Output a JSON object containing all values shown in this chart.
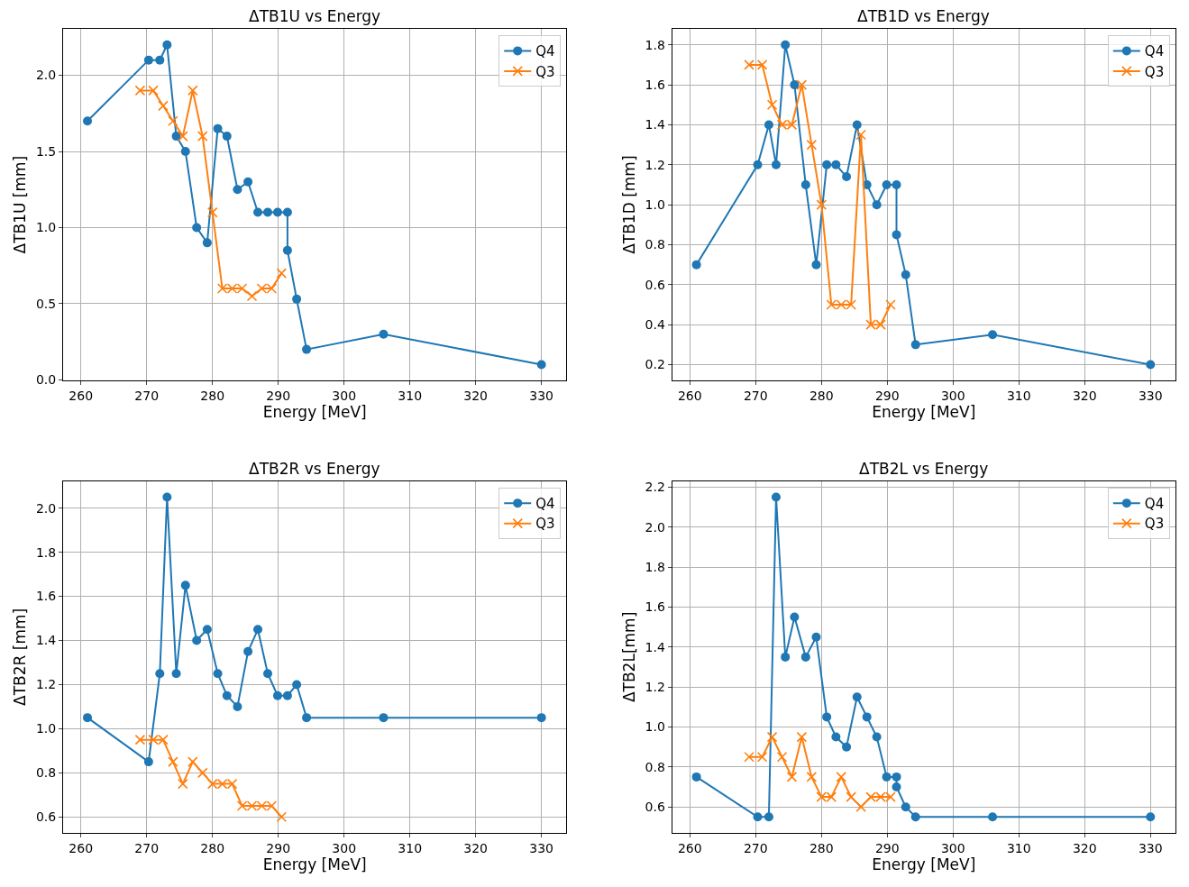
{
  "chart_data": [
    {
      "type": "line",
      "title": "ΔTB1U vs Energy",
      "xlabel": "Energy [MeV]",
      "ylabel": "ΔTB1U [mm]",
      "xlim": [
        257.3,
        333.8
      ],
      "xticks": [
        260,
        270,
        280,
        290,
        300,
        310,
        320,
        330
      ],
      "ylim": [
        -0.005,
        2.305
      ],
      "yticks": [
        {
          "value": 0,
          "label": "0.0"
        },
        0.5,
        {
          "value": 1,
          "label": "1.0"
        },
        1.5,
        {
          "value": 2,
          "label": "2.0"
        }
      ],
      "grid": true,
      "legend": "top right",
      "series": [
        {
          "name": "Q4",
          "color": "#1f77b4",
          "marker": "circle",
          "x": [
            261,
            270.3,
            272,
            273.1,
            274.5,
            275.9,
            277.6,
            279.2,
            280.8,
            282.2,
            283.8,
            285.4,
            286.9,
            288.4,
            289.9,
            291.4,
            291.4,
            292.8,
            294.3,
            306,
            330
          ],
          "values": [
            1.7,
            2.1,
            2.1,
            2.2,
            1.6,
            1.5,
            1.0,
            0.9,
            1.65,
            1.6,
            1.25,
            1.3,
            1.1,
            1.1,
            1.1,
            1.1,
            0.85,
            0.53,
            0.2,
            0.3,
            0.1
          ]
        },
        {
          "name": "Q3",
          "color": "#ff7f0e",
          "marker": "cross",
          "x": [
            269,
            271,
            272.5,
            274,
            275.5,
            277,
            278.5,
            280,
            281.5,
            283,
            284.5,
            286,
            287.5,
            289,
            290.5
          ],
          "values": [
            1.9,
            1.9,
            1.8,
            1.7,
            1.6,
            1.9,
            1.6,
            1.1,
            0.6,
            0.6,
            0.6,
            0.55,
            0.6,
            0.6,
            0.7
          ]
        }
      ]
    },
    {
      "type": "line",
      "title": "ΔTB1D vs Energy",
      "xlabel": "Energy [MeV]",
      "ylabel": "ΔTB1D [mm]",
      "xlim": [
        257.3,
        333.8
      ],
      "xticks": [
        260,
        270,
        280,
        290,
        300,
        310,
        320,
        330
      ],
      "ylim": [
        0.12,
        1.88
      ],
      "yticks": [
        0.2,
        0.4,
        0.6,
        0.8,
        {
          "value": 1,
          "label": "1.0"
        },
        1.2,
        1.4,
        1.6,
        1.8
      ],
      "grid": true,
      "legend": "top right",
      "series": [
        {
          "name": "Q4",
          "color": "#1f77b4",
          "marker": "circle",
          "x": [
            261,
            270.3,
            272,
            273.1,
            274.5,
            275.9,
            277.6,
            279.2,
            280.8,
            282.2,
            283.8,
            285.4,
            286.9,
            288.4,
            289.9,
            291.4,
            291.4,
            292.8,
            294.3,
            306,
            330
          ],
          "values": [
            0.7,
            1.2,
            1.4,
            1.2,
            1.8,
            1.6,
            1.1,
            0.7,
            1.2,
            1.2,
            1.14,
            1.4,
            1.1,
            1.0,
            1.1,
            1.1,
            0.85,
            0.65,
            0.3,
            0.35,
            0.2
          ]
        },
        {
          "name": "Q3",
          "color": "#ff7f0e",
          "marker": "cross",
          "x": [
            269,
            271,
            272.5,
            274,
            275.5,
            277,
            278.5,
            280,
            281.5,
            283,
            284.5,
            286,
            287.5,
            289,
            290.5
          ],
          "values": [
            1.7,
            1.7,
            1.5,
            1.4,
            1.4,
            1.6,
            1.3,
            1.0,
            0.5,
            0.5,
            0.5,
            1.35,
            0.4,
            0.4,
            0.5
          ]
        }
      ]
    },
    {
      "type": "line",
      "title": "ΔTB2R vs Energy",
      "xlabel": "Energy [MeV]",
      "ylabel": "ΔTB2R [mm]",
      "xlim": [
        257.3,
        333.8
      ],
      "xticks": [
        260,
        270,
        280,
        290,
        300,
        310,
        320,
        330
      ],
      "ylim": [
        0.5275,
        2.1225
      ],
      "yticks": [
        0.6,
        0.8,
        {
          "value": 1,
          "label": "1.0"
        },
        1.2,
        1.4,
        1.6,
        1.8,
        {
          "value": 2,
          "label": "2.0"
        }
      ],
      "grid": true,
      "legend": "top right",
      "series": [
        {
          "name": "Q4",
          "color": "#1f77b4",
          "marker": "circle",
          "x": [
            261,
            270.3,
            272,
            273.1,
            274.5,
            275.9,
            277.6,
            279.2,
            280.8,
            282.2,
            283.8,
            285.4,
            286.9,
            288.4,
            289.9,
            291.4,
            292.8,
            294.3,
            306,
            330
          ],
          "values": [
            1.05,
            0.85,
            1.25,
            2.05,
            1.25,
            1.65,
            1.4,
            1.45,
            1.25,
            1.15,
            1.1,
            1.35,
            1.45,
            1.25,
            1.15,
            1.15,
            1.2,
            1.05,
            1.05,
            1.05
          ]
        },
        {
          "name": "Q3",
          "color": "#ff7f0e",
          "marker": "cross",
          "x": [
            269,
            271,
            272.5,
            274,
            275.5,
            277,
            278.5,
            280,
            281.5,
            283,
            284.5,
            286,
            287.5,
            289,
            290.5
          ],
          "values": [
            0.95,
            0.95,
            0.95,
            0.85,
            0.75,
            0.85,
            0.8,
            0.75,
            0.75,
            0.75,
            0.65,
            0.65,
            0.65,
            0.65,
            0.6
          ]
        }
      ]
    },
    {
      "type": "line",
      "title": "ΔTB2L vs Energy",
      "xlabel": "Energy [MeV]",
      "ylabel": "ΔTB2L[mm]",
      "xlim": [
        257.3,
        333.8
      ],
      "xticks": [
        260,
        270,
        280,
        290,
        300,
        310,
        320,
        330
      ],
      "ylim": [
        0.47,
        2.23
      ],
      "yticks": [
        0.6,
        0.8,
        {
          "value": 1,
          "label": "1.0"
        },
        1.2,
        1.4,
        1.6,
        1.8,
        {
          "value": 2,
          "label": "2.0"
        },
        2.2
      ],
      "grid": true,
      "legend": "top right",
      "series": [
        {
          "name": "Q4",
          "color": "#1f77b4",
          "marker": "circle",
          "x": [
            261,
            270.3,
            272,
            273.1,
            274.5,
            275.9,
            277.6,
            279.2,
            280.8,
            282.2,
            283.8,
            285.4,
            286.9,
            288.4,
            289.9,
            291.4,
            291.4,
            292.8,
            294.3,
            306,
            330
          ],
          "values": [
            0.75,
            0.55,
            0.55,
            2.15,
            1.35,
            1.55,
            1.35,
            1.45,
            1.05,
            0.95,
            0.9,
            1.15,
            1.05,
            0.95,
            0.75,
            0.75,
            0.7,
            0.6,
            0.55,
            0.55,
            0.55
          ]
        },
        {
          "name": "Q3",
          "color": "#ff7f0e",
          "marker": "cross",
          "x": [
            269,
            271,
            272.5,
            274,
            275.5,
            277,
            278.5,
            280,
            281.5,
            283,
            284.5,
            286,
            287.5,
            289,
            290.5
          ],
          "values": [
            0.85,
            0.85,
            0.95,
            0.85,
            0.75,
            0.95,
            0.75,
            0.65,
            0.65,
            0.75,
            0.65,
            0.6,
            0.65,
            0.65,
            0.65
          ]
        }
      ]
    }
  ]
}
